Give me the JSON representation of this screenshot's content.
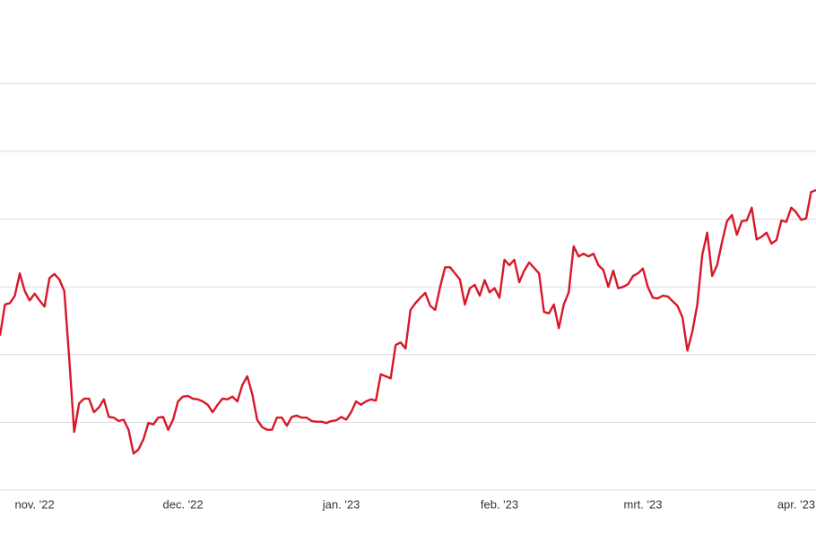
{
  "chart_data": {
    "type": "line",
    "x": [
      -7,
      -6,
      -5,
      -4,
      -3,
      -2,
      -1,
      0,
      1,
      2,
      3,
      4,
      5,
      6,
      7,
      8,
      9,
      10,
      11,
      12,
      13,
      14,
      15,
      16,
      17,
      18,
      19,
      20,
      21,
      22,
      23,
      24,
      25,
      26,
      27,
      28,
      29,
      30,
      31,
      32,
      33,
      34,
      35,
      36,
      37,
      38,
      39,
      40,
      41,
      42,
      43,
      44,
      45,
      46,
      47,
      48,
      49,
      50,
      51,
      52,
      53,
      54,
      55,
      56,
      57,
      58,
      59,
      60,
      61,
      62,
      63,
      64,
      65,
      66,
      67,
      68,
      69,
      70,
      71,
      72,
      73,
      74,
      75,
      76,
      77,
      78,
      79,
      80,
      81,
      82,
      83,
      84,
      85,
      86,
      87,
      88,
      89,
      90,
      91,
      92,
      93,
      94,
      95,
      96,
      97,
      98,
      99,
      100,
      101,
      102,
      103,
      104,
      105,
      106,
      107,
      108,
      109,
      110,
      111,
      112,
      113,
      114,
      115,
      116,
      117,
      118,
      119,
      120,
      121,
      122,
      123,
      124,
      125,
      126,
      127,
      128,
      129,
      130,
      131,
      132,
      133,
      134,
      135,
      136,
      137,
      138,
      139,
      140,
      141,
      142,
      143,
      144,
      145,
      146,
      147,
      148,
      149,
      150,
      151,
      152,
      153,
      154,
      155,
      156,
      157,
      158
    ],
    "series": [
      {
        "color": "#d7182a",
        "values": [
          2.28,
          2.74,
          2.76,
          2.87,
          3.2,
          2.94,
          2.8,
          2.9,
          2.8,
          2.71,
          3.13,
          3.19,
          3.11,
          2.94,
          1.94,
          0.86,
          1.28,
          1.35,
          1.35,
          1.15,
          1.22,
          1.34,
          1.08,
          1.07,
          1.02,
          1.04,
          0.89,
          0.54,
          0.6,
          0.75,
          0.99,
          0.97,
          1.07,
          1.08,
          0.89,
          1.04,
          1.31,
          1.38,
          1.39,
          1.35,
          1.34,
          1.31,
          1.26,
          1.15,
          1.26,
          1.35,
          1.34,
          1.38,
          1.31,
          1.55,
          1.68,
          1.42,
          1.04,
          0.93,
          0.89,
          0.89,
          1.07,
          1.07,
          0.95,
          1.08,
          1.1,
          1.07,
          1.07,
          1.02,
          1.01,
          1.01,
          0.99,
          1.02,
          1.03,
          1.08,
          1.04,
          1.15,
          1.31,
          1.26,
          1.31,
          1.34,
          1.32,
          1.71,
          1.68,
          1.65,
          2.14,
          2.18,
          2.09,
          2.66,
          2.76,
          2.84,
          2.91,
          2.72,
          2.66,
          3.0,
          3.29,
          3.29,
          3.2,
          3.11,
          2.74,
          2.98,
          3.03,
          2.87,
          3.1,
          2.92,
          2.98,
          2.84,
          3.4,
          3.32,
          3.4,
          3.07,
          3.24,
          3.36,
          3.28,
          3.2,
          2.63,
          2.61,
          2.74,
          2.39,
          2.74,
          2.92,
          3.6,
          3.45,
          3.49,
          3.45,
          3.49,
          3.32,
          3.25,
          3.0,
          3.24,
          2.98,
          3.0,
          3.04,
          3.16,
          3.2,
          3.27,
          3.0,
          2.84,
          2.83,
          2.87,
          2.86,
          2.79,
          2.72,
          2.55,
          2.06,
          2.34,
          2.74,
          3.47,
          3.8,
          3.16,
          3.32,
          3.66,
          3.97,
          4.06,
          3.77,
          3.97,
          3.98,
          4.17,
          3.7,
          3.74,
          3.8,
          3.64,
          3.69,
          3.98,
          3.96,
          4.17,
          4.1,
          3.99,
          4.01,
          4.4,
          4.43
        ]
      }
    ],
    "xlim": [
      -7,
      158
    ],
    "xticks": [
      {
        "value": 0,
        "label": "nov. '22"
      },
      {
        "value": 30,
        "label": "dec. '22"
      },
      {
        "value": 62,
        "label": "jan. '23"
      },
      {
        "value": 94,
        "label": "feb. '23"
      },
      {
        "value": 123,
        "label": "mrt. '23"
      },
      {
        "value": 154,
        "label": "apr. '23"
      }
    ],
    "ylim": [
      0,
      7
    ],
    "yticks": [
      0,
      1,
      2,
      3,
      4,
      5,
      6
    ],
    "grid": true
  }
}
